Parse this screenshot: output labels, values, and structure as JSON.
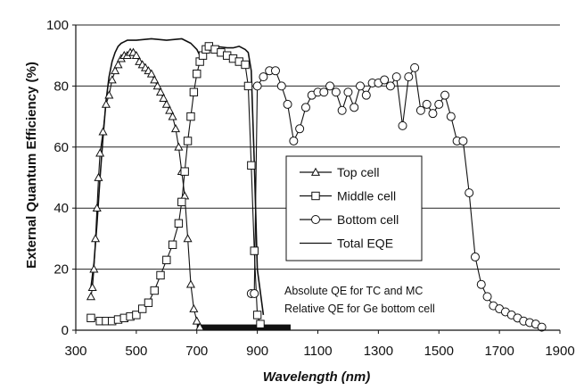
{
  "chart_data": {
    "type": "line",
    "title": "",
    "xlabel": "Wavelength  (nm)",
    "ylabel": "External Quantum Efficiency  (%)",
    "xlim": [
      300,
      1900
    ],
    "ylim": [
      0,
      100
    ],
    "x_ticks": [
      300,
      500,
      700,
      900,
      1100,
      1300,
      1500,
      1700,
      1900
    ],
    "y_ticks": [
      0,
      20,
      40,
      60,
      80,
      100
    ],
    "grid": "horizontal",
    "legend_position": "center-right",
    "annotation": [
      "Absolute QE for TC and MC",
      "Relative QE for Ge bottom cell"
    ],
    "series": [
      {
        "name": "Top cell",
        "marker": "triangle",
        "x": [
          350,
          355,
          360,
          365,
          370,
          375,
          380,
          390,
          400,
          410,
          420,
          430,
          440,
          450,
          460,
          470,
          480,
          490,
          500,
          510,
          520,
          530,
          540,
          550,
          560,
          570,
          580,
          590,
          600,
          610,
          620,
          630,
          640,
          650,
          660,
          670,
          680,
          690,
          700,
          710
        ],
        "y": [
          11,
          14,
          20,
          30,
          40,
          50,
          58,
          65,
          74,
          77,
          82,
          85,
          87,
          89,
          90,
          90,
          91,
          91,
          90,
          88,
          87,
          86,
          85,
          84,
          82,
          80,
          78,
          76,
          74,
          72,
          70,
          66,
          60,
          52,
          44,
          30,
          15,
          7,
          3,
          1
        ]
      },
      {
        "name": "Middle cell",
        "marker": "square",
        "x": [
          350,
          380,
          400,
          420,
          440,
          460,
          480,
          500,
          520,
          540,
          560,
          580,
          600,
          620,
          640,
          650,
          660,
          670,
          680,
          690,
          700,
          710,
          720,
          730,
          740,
          760,
          780,
          800,
          820,
          840,
          860,
          870,
          880,
          890,
          900,
          910
        ],
        "y": [
          4,
          3,
          3,
          3,
          3.5,
          4,
          4.5,
          5,
          7,
          9,
          13,
          18,
          23,
          28,
          35,
          42,
          52,
          62,
          70,
          78,
          84,
          88,
          90,
          92,
          93,
          92,
          91,
          90,
          89,
          88,
          87,
          80,
          54,
          26,
          5,
          2
        ]
      },
      {
        "name": "Bottom cell",
        "marker": "circle",
        "x": [
          880,
          890,
          900,
          920,
          940,
          960,
          980,
          1000,
          1020,
          1040,
          1060,
          1080,
          1100,
          1120,
          1140,
          1160,
          1180,
          1200,
          1220,
          1240,
          1260,
          1280,
          1300,
          1320,
          1340,
          1360,
          1380,
          1400,
          1420,
          1440,
          1460,
          1480,
          1500,
          1520,
          1540,
          1560,
          1580,
          1600,
          1620,
          1640,
          1660,
          1680,
          1700,
          1720,
          1740,
          1760,
          1780,
          1800,
          1820,
          1840
        ],
        "y": [
          12,
          12,
          80,
          83,
          85,
          85,
          80,
          74,
          62,
          66,
          73,
          77,
          78,
          78,
          80,
          78,
          72,
          78,
          73,
          80,
          77,
          81,
          81,
          82,
          80,
          83,
          67,
          83,
          86,
          72,
          74,
          71,
          74,
          77,
          70,
          62,
          62,
          45,
          24,
          15,
          11,
          8,
          7,
          6,
          5,
          4,
          3,
          2.5,
          2,
          1
        ]
      },
      {
        "name": "Total EQE",
        "marker": "none",
        "x": [
          350,
          360,
          370,
          380,
          390,
          400,
          410,
          420,
          430,
          440,
          450,
          460,
          470,
          480,
          500,
          550,
          600,
          650,
          680,
          700,
          710,
          720,
          730,
          760,
          800,
          820,
          840,
          860,
          870,
          880,
          890,
          900,
          920
        ],
        "y": [
          14,
          22,
          35,
          50,
          63,
          75,
          83,
          88,
          91,
          93,
          94,
          94.5,
          95,
          95,
          95,
          95.5,
          95,
          95.5,
          94,
          92,
          90,
          91,
          93,
          93,
          92.5,
          92.5,
          93,
          92,
          91,
          85,
          55,
          20,
          5
        ]
      }
    ],
    "dark_band": {
      "x": [
        700,
        1010
      ],
      "y": [
        0,
        1
      ]
    }
  }
}
